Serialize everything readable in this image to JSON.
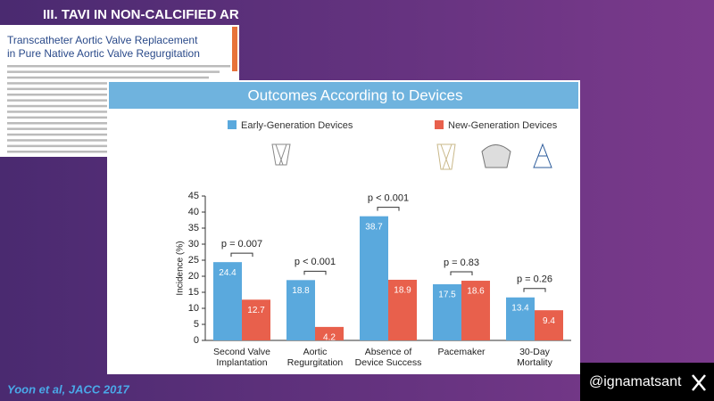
{
  "slide": {
    "heading": "III. TAVI IN NON-CALCIFIED AR",
    "paper_title": [
      "Transcatheter Aortic Valve Replacement",
      "in Pure Native Aortic Valve Regurgitation"
    ],
    "citation": "Yoon et al, JACC 2017",
    "handle": "@ignamatsant"
  },
  "chart_data": {
    "type": "bar",
    "title": "Outcomes According to Devices",
    "ylabel": "Incidence (%)",
    "categories": [
      [
        "Second Valve",
        "Implantation"
      ],
      [
        "Aortic",
        "Regurgitation"
      ],
      [
        "Absence of",
        "Device Success"
      ],
      [
        "Pacemaker"
      ],
      [
        "30-Day",
        "Mortality"
      ]
    ],
    "series": [
      {
        "name": "Early-Generation Devices",
        "color": "#5aa9dd",
        "values": [
          24.4,
          18.8,
          38.7,
          17.5,
          13.4
        ]
      },
      {
        "name": "New-Generation Devices",
        "color": "#e8604c",
        "values": [
          12.7,
          4.2,
          18.9,
          18.6,
          9.4
        ]
      }
    ],
    "annotations": [
      "p = 0.007",
      "p < 0.001",
      "p < 0.001",
      "p = 0.83",
      "p = 0.26"
    ],
    "ylim": [
      0,
      45
    ],
    "yticks": [
      0,
      5,
      10,
      15,
      20,
      25,
      30,
      35,
      40,
      45
    ]
  }
}
